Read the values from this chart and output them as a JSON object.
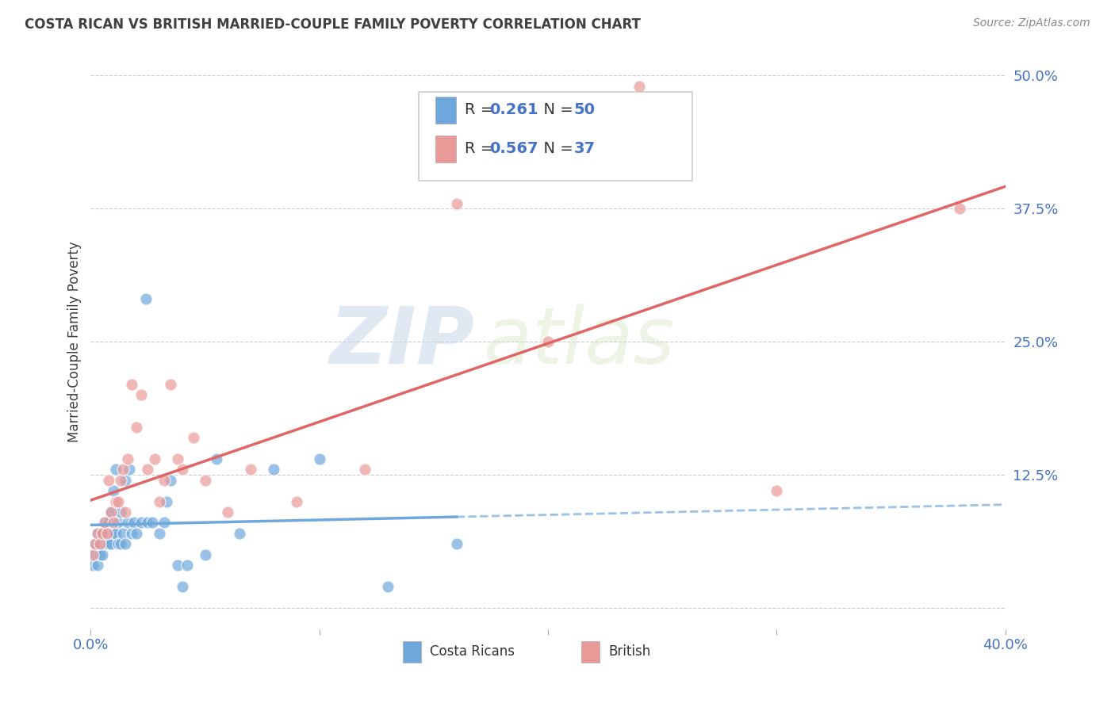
{
  "title": "COSTA RICAN VS BRITISH MARRIED-COUPLE FAMILY POVERTY CORRELATION CHART",
  "source": "Source: ZipAtlas.com",
  "ylabel": "Married-Couple Family Poverty",
  "watermark_zip": "ZIP",
  "watermark_atlas": "atlas",
  "xlim": [
    0.0,
    0.4
  ],
  "ylim": [
    -0.02,
    0.52
  ],
  "ylim_data": [
    0.0,
    0.5
  ],
  "costa_rican_R": 0.261,
  "costa_rican_N": 50,
  "british_R": 0.567,
  "british_N": 37,
  "costa_rican_color": "#6fa8dc",
  "british_color": "#ea9999",
  "british_line_color": "#e06666",
  "label_color": "#4472c4",
  "title_color": "#404040",
  "source_color": "#888888",
  "grid_color": "#cccccc",
  "costa_ricans_x": [
    0.001,
    0.002,
    0.002,
    0.003,
    0.003,
    0.004,
    0.004,
    0.005,
    0.005,
    0.006,
    0.006,
    0.007,
    0.008,
    0.008,
    0.009,
    0.009,
    0.01,
    0.01,
    0.011,
    0.011,
    0.012,
    0.012,
    0.013,
    0.013,
    0.014,
    0.015,
    0.015,
    0.016,
    0.017,
    0.018,
    0.019,
    0.02,
    0.022,
    0.024,
    0.025,
    0.027,
    0.03,
    0.032,
    0.033,
    0.035,
    0.038,
    0.04,
    0.042,
    0.05,
    0.055,
    0.065,
    0.08,
    0.1,
    0.13,
    0.16
  ],
  "costa_ricans_y": [
    0.04,
    0.05,
    0.06,
    0.04,
    0.07,
    0.05,
    0.06,
    0.05,
    0.07,
    0.06,
    0.08,
    0.07,
    0.06,
    0.08,
    0.06,
    0.09,
    0.07,
    0.11,
    0.07,
    0.13,
    0.06,
    0.08,
    0.06,
    0.09,
    0.07,
    0.06,
    0.12,
    0.08,
    0.13,
    0.07,
    0.08,
    0.07,
    0.08,
    0.29,
    0.08,
    0.08,
    0.07,
    0.08,
    0.1,
    0.12,
    0.04,
    0.02,
    0.04,
    0.05,
    0.14,
    0.07,
    0.13,
    0.14,
    0.02,
    0.06
  ],
  "british_x": [
    0.001,
    0.002,
    0.003,
    0.004,
    0.005,
    0.006,
    0.007,
    0.008,
    0.009,
    0.01,
    0.011,
    0.012,
    0.013,
    0.014,
    0.015,
    0.016,
    0.018,
    0.02,
    0.022,
    0.025,
    0.028,
    0.03,
    0.032,
    0.035,
    0.038,
    0.04,
    0.045,
    0.05,
    0.06,
    0.07,
    0.09,
    0.12,
    0.16,
    0.2,
    0.24,
    0.3,
    0.38
  ],
  "british_y": [
    0.05,
    0.06,
    0.07,
    0.06,
    0.07,
    0.08,
    0.07,
    0.12,
    0.09,
    0.08,
    0.1,
    0.1,
    0.12,
    0.13,
    0.09,
    0.14,
    0.21,
    0.17,
    0.2,
    0.13,
    0.14,
    0.1,
    0.12,
    0.21,
    0.14,
    0.13,
    0.16,
    0.12,
    0.09,
    0.13,
    0.1,
    0.13,
    0.38,
    0.25,
    0.49,
    0.11,
    0.375
  ]
}
